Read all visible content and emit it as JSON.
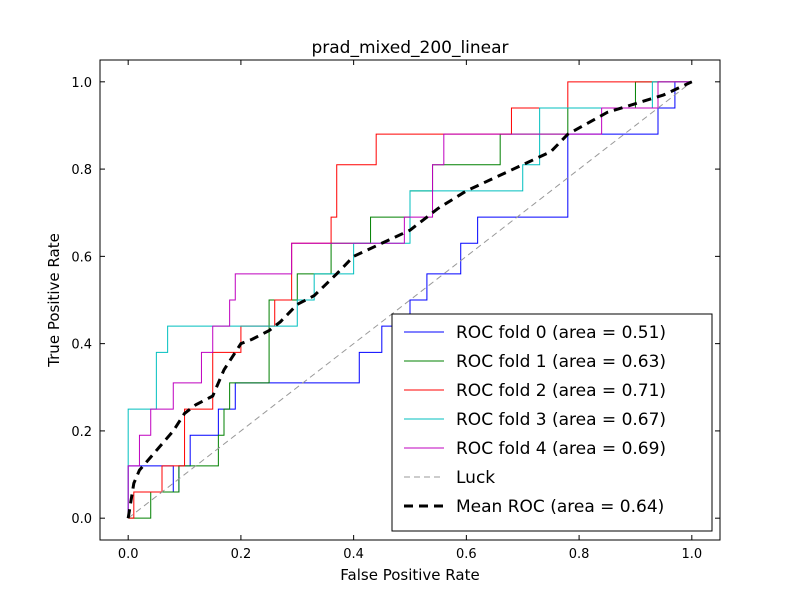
{
  "chart_data": {
    "type": "line",
    "title": "prad_mixed_200_linear",
    "xlabel": "False Positive Rate",
    "ylabel": "True Positive Rate",
    "xlim": [
      -0.05,
      1.05
    ],
    "ylim": [
      -0.05,
      1.05
    ],
    "xticks": [
      "0.0",
      "0.2",
      "0.4",
      "0.6",
      "0.8",
      "1.0"
    ],
    "yticks": [
      "0.0",
      "0.2",
      "0.4",
      "0.6",
      "0.8",
      "1.0"
    ],
    "grid": false,
    "legend_position": "lower-right",
    "series": [
      {
        "name": "ROC fold 0 (area = 0.51)",
        "color": "#0000ff",
        "style": "solid",
        "step": true,
        "points": [
          [
            0,
            0
          ],
          [
            0,
            0.12
          ],
          [
            0.08,
            0.12
          ],
          [
            0.08,
            0.06
          ],
          [
            0.09,
            0.06
          ],
          [
            0.09,
            0.12
          ],
          [
            0.11,
            0.12
          ],
          [
            0.11,
            0.19
          ],
          [
            0.16,
            0.19
          ],
          [
            0.16,
            0.25
          ],
          [
            0.19,
            0.25
          ],
          [
            0.19,
            0.31
          ],
          [
            0.41,
            0.31
          ],
          [
            0.41,
            0.38
          ],
          [
            0.45,
            0.38
          ],
          [
            0.45,
            0.44
          ],
          [
            0.5,
            0.44
          ],
          [
            0.5,
            0.5
          ],
          [
            0.53,
            0.5
          ],
          [
            0.53,
            0.56
          ],
          [
            0.59,
            0.56
          ],
          [
            0.59,
            0.63
          ],
          [
            0.62,
            0.63
          ],
          [
            0.62,
            0.69
          ],
          [
            0.78,
            0.69
          ],
          [
            0.78,
            0.88
          ],
          [
            0.94,
            0.88
          ],
          [
            0.94,
            0.94
          ],
          [
            0.97,
            0.94
          ],
          [
            0.97,
            1
          ],
          [
            1,
            1
          ]
        ]
      },
      {
        "name": "ROC fold 1 (area = 0.63)",
        "color": "#008000",
        "style": "solid",
        "step": true,
        "points": [
          [
            0,
            0
          ],
          [
            0.04,
            0
          ],
          [
            0.04,
            0.06
          ],
          [
            0.09,
            0.06
          ],
          [
            0.09,
            0.12
          ],
          [
            0.16,
            0.12
          ],
          [
            0.16,
            0.19
          ],
          [
            0.17,
            0.19
          ],
          [
            0.17,
            0.25
          ],
          [
            0.18,
            0.25
          ],
          [
            0.18,
            0.31
          ],
          [
            0.25,
            0.31
          ],
          [
            0.25,
            0.5
          ],
          [
            0.3,
            0.5
          ],
          [
            0.3,
            0.56
          ],
          [
            0.36,
            0.56
          ],
          [
            0.36,
            0.63
          ],
          [
            0.43,
            0.63
          ],
          [
            0.43,
            0.69
          ],
          [
            0.5,
            0.69
          ],
          [
            0.5,
            0.75
          ],
          [
            0.54,
            0.75
          ],
          [
            0.54,
            0.81
          ],
          [
            0.66,
            0.81
          ],
          [
            0.66,
            0.88
          ],
          [
            0.78,
            0.88
          ],
          [
            0.78,
            0.94
          ],
          [
            0.9,
            0.94
          ],
          [
            0.9,
            1
          ],
          [
            1,
            1
          ]
        ]
      },
      {
        "name": "ROC fold 2 (area = 0.71)",
        "color": "#ff0000",
        "style": "solid",
        "step": true,
        "points": [
          [
            0,
            0
          ],
          [
            0.01,
            0
          ],
          [
            0.01,
            0.06
          ],
          [
            0.06,
            0.06
          ],
          [
            0.06,
            0.12
          ],
          [
            0.1,
            0.12
          ],
          [
            0.1,
            0.25
          ],
          [
            0.15,
            0.25
          ],
          [
            0.15,
            0.38
          ],
          [
            0.2,
            0.38
          ],
          [
            0.2,
            0.44
          ],
          [
            0.26,
            0.44
          ],
          [
            0.26,
            0.5
          ],
          [
            0.29,
            0.5
          ],
          [
            0.29,
            0.63
          ],
          [
            0.36,
            0.63
          ],
          [
            0.36,
            0.69
          ],
          [
            0.37,
            0.69
          ],
          [
            0.37,
            0.81
          ],
          [
            0.44,
            0.81
          ],
          [
            0.44,
            0.88
          ],
          [
            0.68,
            0.88
          ],
          [
            0.68,
            0.94
          ],
          [
            0.78,
            0.94
          ],
          [
            0.78,
            1
          ],
          [
            1,
            1
          ]
        ]
      },
      {
        "name": "ROC fold 3 (area = 0.67)",
        "color": "#00bfbf",
        "style": "solid",
        "step": true,
        "points": [
          [
            0,
            0
          ],
          [
            0,
            0.25
          ],
          [
            0.05,
            0.25
          ],
          [
            0.05,
            0.38
          ],
          [
            0.07,
            0.38
          ],
          [
            0.07,
            0.44
          ],
          [
            0.3,
            0.44
          ],
          [
            0.3,
            0.5
          ],
          [
            0.33,
            0.5
          ],
          [
            0.33,
            0.56
          ],
          [
            0.4,
            0.56
          ],
          [
            0.4,
            0.63
          ],
          [
            0.5,
            0.63
          ],
          [
            0.5,
            0.75
          ],
          [
            0.7,
            0.75
          ],
          [
            0.7,
            0.81
          ],
          [
            0.73,
            0.81
          ],
          [
            0.73,
            0.94
          ],
          [
            0.93,
            0.94
          ],
          [
            0.93,
            1
          ],
          [
            1,
            1
          ]
        ]
      },
      {
        "name": "ROC fold 4 (area = 0.69)",
        "color": "#bf00bf",
        "style": "solid",
        "step": true,
        "points": [
          [
            0,
            0
          ],
          [
            0,
            0.12
          ],
          [
            0.02,
            0.12
          ],
          [
            0.02,
            0.19
          ],
          [
            0.04,
            0.19
          ],
          [
            0.04,
            0.25
          ],
          [
            0.08,
            0.25
          ],
          [
            0.08,
            0.31
          ],
          [
            0.13,
            0.31
          ],
          [
            0.13,
            0.38
          ],
          [
            0.15,
            0.38
          ],
          [
            0.15,
            0.44
          ],
          [
            0.18,
            0.44
          ],
          [
            0.18,
            0.5
          ],
          [
            0.19,
            0.5
          ],
          [
            0.19,
            0.56
          ],
          [
            0.29,
            0.56
          ],
          [
            0.29,
            0.63
          ],
          [
            0.49,
            0.63
          ],
          [
            0.49,
            0.69
          ],
          [
            0.54,
            0.69
          ],
          [
            0.54,
            0.81
          ],
          [
            0.56,
            0.81
          ],
          [
            0.56,
            0.88
          ],
          [
            0.84,
            0.88
          ],
          [
            0.84,
            0.94
          ],
          [
            0.94,
            0.94
          ],
          [
            0.94,
            1
          ],
          [
            1,
            1
          ]
        ]
      },
      {
        "name": "Luck",
        "color": "#999999",
        "style": "dashed",
        "step": false,
        "points": [
          [
            0,
            0
          ],
          [
            1,
            1
          ]
        ]
      },
      {
        "name": "Mean ROC (area = 0.64)",
        "color": "#000000",
        "style": "thick-dashed",
        "step": false,
        "points": [
          [
            0,
            0
          ],
          [
            0.01,
            0.08
          ],
          [
            0.02,
            0.11
          ],
          [
            0.04,
            0.14
          ],
          [
            0.06,
            0.17
          ],
          [
            0.08,
            0.2
          ],
          [
            0.1,
            0.24
          ],
          [
            0.12,
            0.26
          ],
          [
            0.15,
            0.28
          ],
          [
            0.17,
            0.34
          ],
          [
            0.2,
            0.4
          ],
          [
            0.22,
            0.41
          ],
          [
            0.25,
            0.43
          ],
          [
            0.27,
            0.45
          ],
          [
            0.3,
            0.49
          ],
          [
            0.33,
            0.51
          ],
          [
            0.37,
            0.56
          ],
          [
            0.4,
            0.6
          ],
          [
            0.45,
            0.63
          ],
          [
            0.5,
            0.66
          ],
          [
            0.55,
            0.71
          ],
          [
            0.6,
            0.75
          ],
          [
            0.65,
            0.78
          ],
          [
            0.7,
            0.81
          ],
          [
            0.75,
            0.84
          ],
          [
            0.78,
            0.88
          ],
          [
            0.85,
            0.93
          ],
          [
            0.9,
            0.95
          ],
          [
            0.95,
            0.97
          ],
          [
            1,
            1
          ]
        ]
      }
    ]
  }
}
